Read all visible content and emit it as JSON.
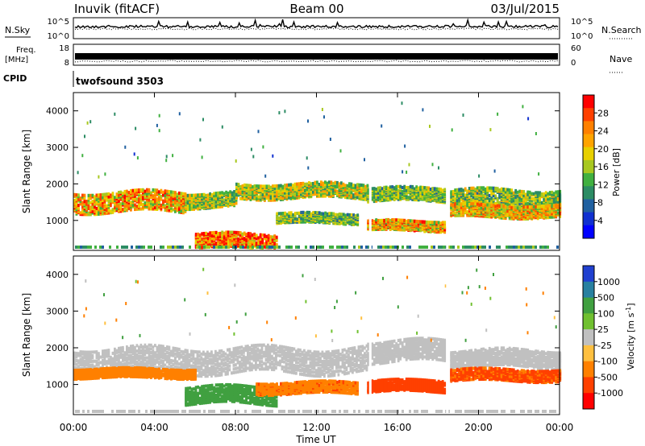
{
  "header": {
    "station": "Inuvik (fitACF)",
    "beam": "Beam 00",
    "date": "03/Jul/2015"
  },
  "chart_data": [
    {
      "type": "line",
      "panel": "noise",
      "left_labels": [
        "N.Sky",
        "10^5",
        "10^0"
      ],
      "right_labels": [
        "N.Search",
        "10^5",
        "10^0"
      ],
      "description_free": true
    },
    {
      "type": "line",
      "panel": "frequency",
      "left_labels": [
        "Freq.",
        "[MHz]",
        "18",
        "8"
      ],
      "right_labels": [
        "Nave",
        "60",
        "0"
      ]
    },
    {
      "type": "table",
      "panel": "cpid",
      "label": "CPID",
      "value": "twofsound 3503"
    },
    {
      "type": "heatmap",
      "panel": "power",
      "ylabel": "Slant Range [km]",
      "yticks": [
        "4000",
        "3000",
        "2000",
        "1000"
      ],
      "ylim": [
        180,
        4500
      ],
      "xlim": [
        0,
        24
      ],
      "colorbar_label": "Power [dB]",
      "colorbar_ticks": [
        "28",
        "24",
        "20",
        "16",
        "12",
        "8",
        "4"
      ],
      "colorbar_colors": [
        "#ff0000",
        "#ff4000",
        "#ff8000",
        "#ffa400",
        "#e8d000",
        "#a8c820",
        "#40b040",
        "#2c8c64",
        "#2060a0",
        "#1030d0",
        "#0000ff"
      ],
      "bands": [
        {
          "from_h": 0.0,
          "to_h": 5.5,
          "center_km": 1500,
          "width_km": 520,
          "level": 22
        },
        {
          "from_h": 5.5,
          "to_h": 8.0,
          "center_km": 1550,
          "width_km": 380,
          "level": 16
        },
        {
          "from_h": 6.0,
          "to_h": 10.0,
          "center_km": 430,
          "width_km": 380,
          "level": 27
        },
        {
          "from_h": 8.0,
          "to_h": 14.5,
          "center_km": 1800,
          "width_km": 380,
          "level": 17
        },
        {
          "from_h": 10.0,
          "to_h": 14.0,
          "center_km": 1050,
          "width_km": 260,
          "level": 14
        },
        {
          "from_h": 14.5,
          "to_h": 18.3,
          "center_km": 1700,
          "width_km": 350,
          "level": 14
        },
        {
          "from_h": 14.5,
          "to_h": 18.3,
          "center_km": 850,
          "width_km": 260,
          "level": 22
        },
        {
          "from_h": 18.6,
          "to_h": 24.0,
          "center_km": 1600,
          "width_km": 450,
          "level": 15
        },
        {
          "from_h": 18.6,
          "to_h": 24.0,
          "center_km": 1250,
          "width_km": 320,
          "level": 21
        }
      ]
    },
    {
      "type": "heatmap",
      "panel": "velocity",
      "ylabel": "Slant Range [km]",
      "yticks": [
        "4000",
        "3000",
        "2000",
        "1000"
      ],
      "ylim": [
        180,
        4500
      ],
      "xlim": [
        0,
        24
      ],
      "colorbar_label": "Velocity [m s^-1]",
      "colorbar_label_main": "Velocity [m s",
      "colorbar_label_sup": "-1",
      "colorbar_label_end": "]",
      "colorbar_ticks": [
        "1000",
        "500",
        "100",
        "25",
        "-25",
        "-100",
        "-500",
        "-1000"
      ],
      "colorbar_colors": [
        "#2040d0",
        "#2880a0",
        "#40a040",
        "#70c030",
        "#c0c0c0",
        "#ffc040",
        "#ff8000",
        "#ff4000",
        "#ff0000"
      ],
      "bands": [
        {
          "from_h": 0.0,
          "to_h": 14.5,
          "center_km": 1650,
          "width_km": 650,
          "level": 0
        },
        {
          "from_h": 0.0,
          "to_h": 6.0,
          "center_km": 1300,
          "width_km": 240,
          "level": -120
        },
        {
          "from_h": 5.5,
          "to_h": 10.0,
          "center_km": 700,
          "width_km": 450,
          "level": 110
        },
        {
          "from_h": 9.0,
          "to_h": 14.0,
          "center_km": 900,
          "width_km": 300,
          "level": -200
        },
        {
          "from_h": 14.5,
          "to_h": 18.3,
          "center_km": 1900,
          "width_km": 550,
          "level": 0
        },
        {
          "from_h": 14.5,
          "to_h": 18.3,
          "center_km": 950,
          "width_km": 300,
          "level": -400
        },
        {
          "from_h": 18.6,
          "to_h": 24.0,
          "center_km": 1700,
          "width_km": 450,
          "level": 0
        },
        {
          "from_h": 18.6,
          "to_h": 24.0,
          "center_km": 1250,
          "width_km": 300,
          "level": -300
        }
      ]
    }
  ],
  "xaxis": {
    "label": "Time UT",
    "ticks": [
      "00:00",
      "04:00",
      "08:00",
      "12:00",
      "16:00",
      "20:00",
      "00:00"
    ]
  }
}
